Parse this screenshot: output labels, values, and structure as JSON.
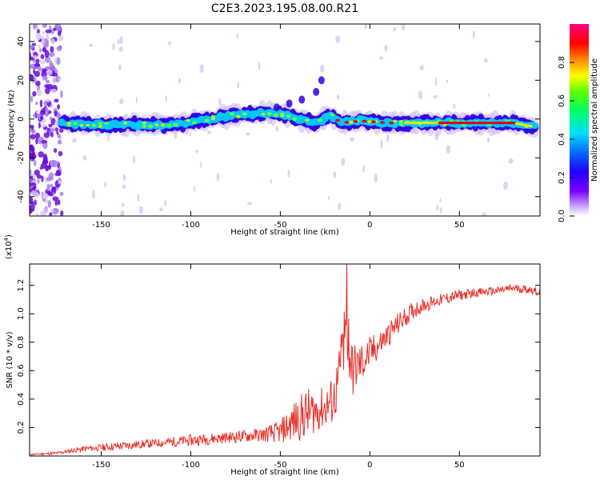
{
  "title": "C2E3.2023.195.08.00.R21",
  "colors": {
    "snr_line": "#e8312a",
    "band_core": "#00c8ff",
    "band_edge": "#2f00e0",
    "band_halo": "#c9b6f5",
    "band_peak": "#e00010",
    "band_mid": "#e8e800"
  },
  "chart_data": [
    {
      "type": "heatmap",
      "xlabel": "Height of straight line (km)",
      "ylabel": "Frequency (Hz)",
      "xlim": [
        -190,
        95
      ],
      "ylim": [
        -50,
        49
      ],
      "x_ticks": [
        "-150",
        "-100",
        "-50",
        "0",
        "50"
      ],
      "x_tick_values": [
        -150,
        -100,
        -50,
        0,
        50
      ],
      "y_ticks": [
        "-40",
        "-20",
        "0",
        "20",
        "40"
      ],
      "y_tick_values": [
        -40,
        -20,
        0,
        20,
        40
      ],
      "colorbar": {
        "label": "Normalized spectral amplitude",
        "range": [
          0,
          1
        ],
        "ticks": [
          "0.0",
          "0.2",
          "0.4",
          "0.6",
          "0.8"
        ],
        "tick_values": [
          0.0,
          0.2,
          0.4,
          0.6,
          0.8
        ],
        "colormap": "rainbow (white-violet-blue-cyan-green-yellow-red-magenta)"
      },
      "band_centerline": {
        "x": [
          -172,
          -150,
          -130,
          -110,
          -90,
          -75,
          -60,
          -50,
          -40,
          -30,
          -22,
          -16,
          -5,
          10,
          30,
          60,
          80,
          92
        ],
        "y": [
          -2,
          -3,
          -3,
          -3,
          0,
          2,
          3,
          3,
          0,
          -2,
          2,
          -2,
          -1,
          -2,
          -2,
          -2,
          -2,
          -4
        ]
      },
      "secondary_feature": {
        "x": [
          -52,
          -45,
          -38,
          -30,
          -27
        ],
        "y": [
          6,
          8,
          10,
          14,
          20
        ]
      }
    },
    {
      "type": "line",
      "xlabel": "Height of straight line (km)",
      "ylabel": "SNR (10 * v/v)",
      "y_multiplier": "(x10",
      "y_multiplier_exp": "4",
      "y_multiplier_close": ")",
      "xlim": [
        -190,
        95
      ],
      "ylim": [
        0,
        1.35
      ],
      "x_ticks": [
        "-150",
        "-100",
        "-50",
        "0",
        "50"
      ],
      "x_tick_values": [
        -150,
        -100,
        -50,
        0,
        50
      ],
      "y_ticks": [
        "0.2",
        "0.4",
        "0.6",
        "0.8",
        "1.0",
        "1.2"
      ],
      "y_tick_values": [
        0.2,
        0.4,
        0.6,
        0.8,
        1.0,
        1.2
      ],
      "series": [
        {
          "x": [
            -190,
            -175,
            -160,
            -140,
            -120,
            -100,
            -80,
            -60,
            -50,
            -45,
            -40,
            -35,
            -30,
            -25,
            -20,
            -17,
            -15,
            -13,
            -10,
            -5,
            0,
            5,
            10,
            15,
            20,
            25,
            30,
            40,
            50,
            60,
            70,
            80,
            90,
            95
          ],
          "y": [
            0.01,
            0.02,
            0.05,
            0.07,
            0.09,
            0.11,
            0.13,
            0.15,
            0.17,
            0.22,
            0.26,
            0.3,
            0.32,
            0.34,
            0.4,
            0.55,
            0.8,
            0.95,
            0.6,
            0.65,
            0.72,
            0.78,
            0.85,
            0.92,
            0.98,
            1.03,
            1.06,
            1.1,
            1.13,
            1.15,
            1.16,
            1.18,
            1.17,
            1.15
          ],
          "noise": [
            0.005,
            0.01,
            0.02,
            0.03,
            0.03,
            0.04,
            0.04,
            0.05,
            0.08,
            0.12,
            0.16,
            0.18,
            0.15,
            0.15,
            0.18,
            0.22,
            0.3,
            0.35,
            0.2,
            0.15,
            0.12,
            0.1,
            0.09,
            0.08,
            0.07,
            0.06,
            0.05,
            0.04,
            0.04,
            0.03,
            0.03,
            0.03,
            0.03,
            0.03
          ]
        }
      ]
    }
  ]
}
